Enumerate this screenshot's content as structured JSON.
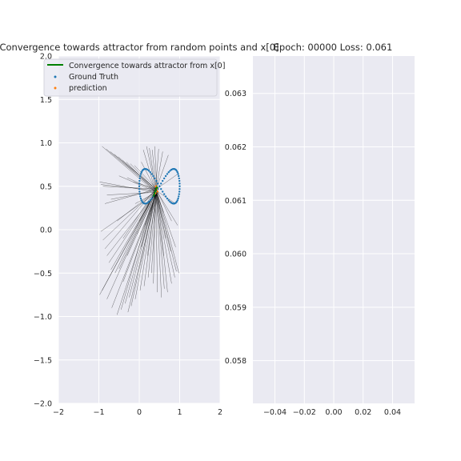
{
  "chart_data": [
    {
      "type": "scatter",
      "title": "Convergence towards attractor from random points and x[0]",
      "xlabel": "",
      "ylabel": "",
      "xlim": [
        -2,
        2
      ],
      "ylim": [
        -2,
        2
      ],
      "xticks": [
        "−2",
        "−1",
        "0",
        "1",
        "2"
      ],
      "yticks": [
        "−2.0",
        "−1.5",
        "−1.0",
        "−0.5",
        "0.0",
        "0.5",
        "1.0",
        "1.5",
        "2.0"
      ],
      "grid": true,
      "legend_position": "top-left",
      "legend": [
        {
          "name": "Convergence towards attractor from x[0]",
          "color": "#008000",
          "marker": "line"
        },
        {
          "name": "Ground Truth",
          "color": "#1f77b4",
          "marker": "dot"
        },
        {
          "name": "prediction",
          "color": "#ff7f0e",
          "marker": "dot"
        }
      ],
      "attractor_center": [
        0.42,
        0.45
      ],
      "ground_truth": {
        "shape": "figure-eight",
        "center": [
          0.5,
          0.5
        ],
        "x_half_width": 0.5,
        "y_half_height": 0.2,
        "points": 80
      },
      "trajectory_starts": [
        [
          -0.92,
          0.96
        ],
        [
          -0.82,
          0.93
        ],
        [
          -0.72,
          0.9
        ],
        [
          -0.62,
          0.87
        ],
        [
          -0.52,
          0.84
        ],
        [
          -0.42,
          0.8
        ],
        [
          -0.32,
          0.78
        ],
        [
          -0.22,
          0.76
        ],
        [
          -0.12,
          0.74
        ],
        [
          0.05,
          0.78
        ],
        [
          0.1,
          0.92
        ],
        [
          0.18,
          0.96
        ],
        [
          0.25,
          0.94
        ],
        [
          0.32,
          0.92
        ],
        [
          0.38,
          0.96
        ],
        [
          0.48,
          0.93
        ],
        [
          0.58,
          0.9
        ],
        [
          0.72,
          0.86
        ],
        [
          -0.98,
          0.55
        ],
        [
          -0.95,
          0.52
        ],
        [
          -0.9,
          0.5
        ],
        [
          -0.8,
          0.4
        ],
        [
          -0.7,
          0.35
        ],
        [
          -0.85,
          0.3
        ],
        [
          -0.95,
          -0.02
        ],
        [
          -0.9,
          -0.12
        ],
        [
          -0.85,
          -0.22
        ],
        [
          -0.8,
          -0.3
        ],
        [
          -0.75,
          -0.38
        ],
        [
          -0.7,
          -0.46
        ],
        [
          -0.98,
          -0.75
        ],
        [
          -0.92,
          -0.7
        ],
        [
          -0.8,
          -0.8
        ],
        [
          -0.68,
          -0.9
        ],
        [
          -0.55,
          -0.98
        ],
        [
          -0.45,
          -0.92
        ],
        [
          -0.35,
          -0.85
        ],
        [
          -0.25,
          -0.78
        ],
        [
          -0.2,
          -0.88
        ],
        [
          -0.28,
          -0.95
        ],
        [
          -0.1,
          -0.8
        ],
        [
          0.02,
          -0.7
        ],
        [
          0.12,
          -0.65
        ],
        [
          0.22,
          -0.55
        ],
        [
          0.3,
          -0.5
        ],
        [
          0.35,
          -0.62
        ],
        [
          0.45,
          -0.72
        ],
        [
          0.55,
          -0.78
        ],
        [
          0.62,
          -0.68
        ],
        [
          0.7,
          -0.72
        ],
        [
          0.8,
          -0.62
        ],
        [
          0.88,
          -0.55
        ],
        [
          0.92,
          -0.48
        ],
        [
          0.98,
          -0.5
        ],
        [
          -0.4,
          -0.6
        ],
        [
          -0.5,
          -0.45
        ],
        [
          -0.6,
          -0.5
        ],
        [
          -0.3,
          -0.3
        ],
        [
          0.05,
          -0.2
        ],
        [
          0.2,
          -0.3
        ],
        [
          0.6,
          -0.3
        ],
        [
          0.78,
          -0.25
        ],
        [
          0.65,
          -0.1
        ],
        [
          0.9,
          -0.2
        ],
        [
          0.8,
          0.1
        ],
        [
          0.95,
          0.05
        ],
        [
          0.6,
          0.2
        ],
        [
          0.9,
          0.3
        ],
        [
          0.98,
          0.65
        ],
        [
          -0.5,
          0.62
        ],
        [
          -0.3,
          0.6
        ],
        [
          -0.15,
          0.55
        ],
        [
          -0.1,
          0.3
        ],
        [
          0.0,
          0.1
        ],
        [
          0.15,
          0.05
        ],
        [
          -0.05,
          -0.05
        ],
        [
          -0.55,
          0.1
        ],
        [
          -0.4,
          -0.1
        ]
      ]
    },
    {
      "type": "line",
      "title": "Epoch: 00000 Loss: 0.061",
      "xlabel": "",
      "ylabel": "",
      "xlim": [
        -0.055,
        0.055
      ],
      "ylim": [
        0.0572,
        0.0637
      ],
      "xticks": [
        "−0.04",
        "−0.02",
        "0.00",
        "0.02",
        "0.04"
      ],
      "yticks": [
        "0.058",
        "0.059",
        "0.060",
        "0.061",
        "0.062",
        "0.063"
      ],
      "grid": true,
      "series": []
    }
  ]
}
